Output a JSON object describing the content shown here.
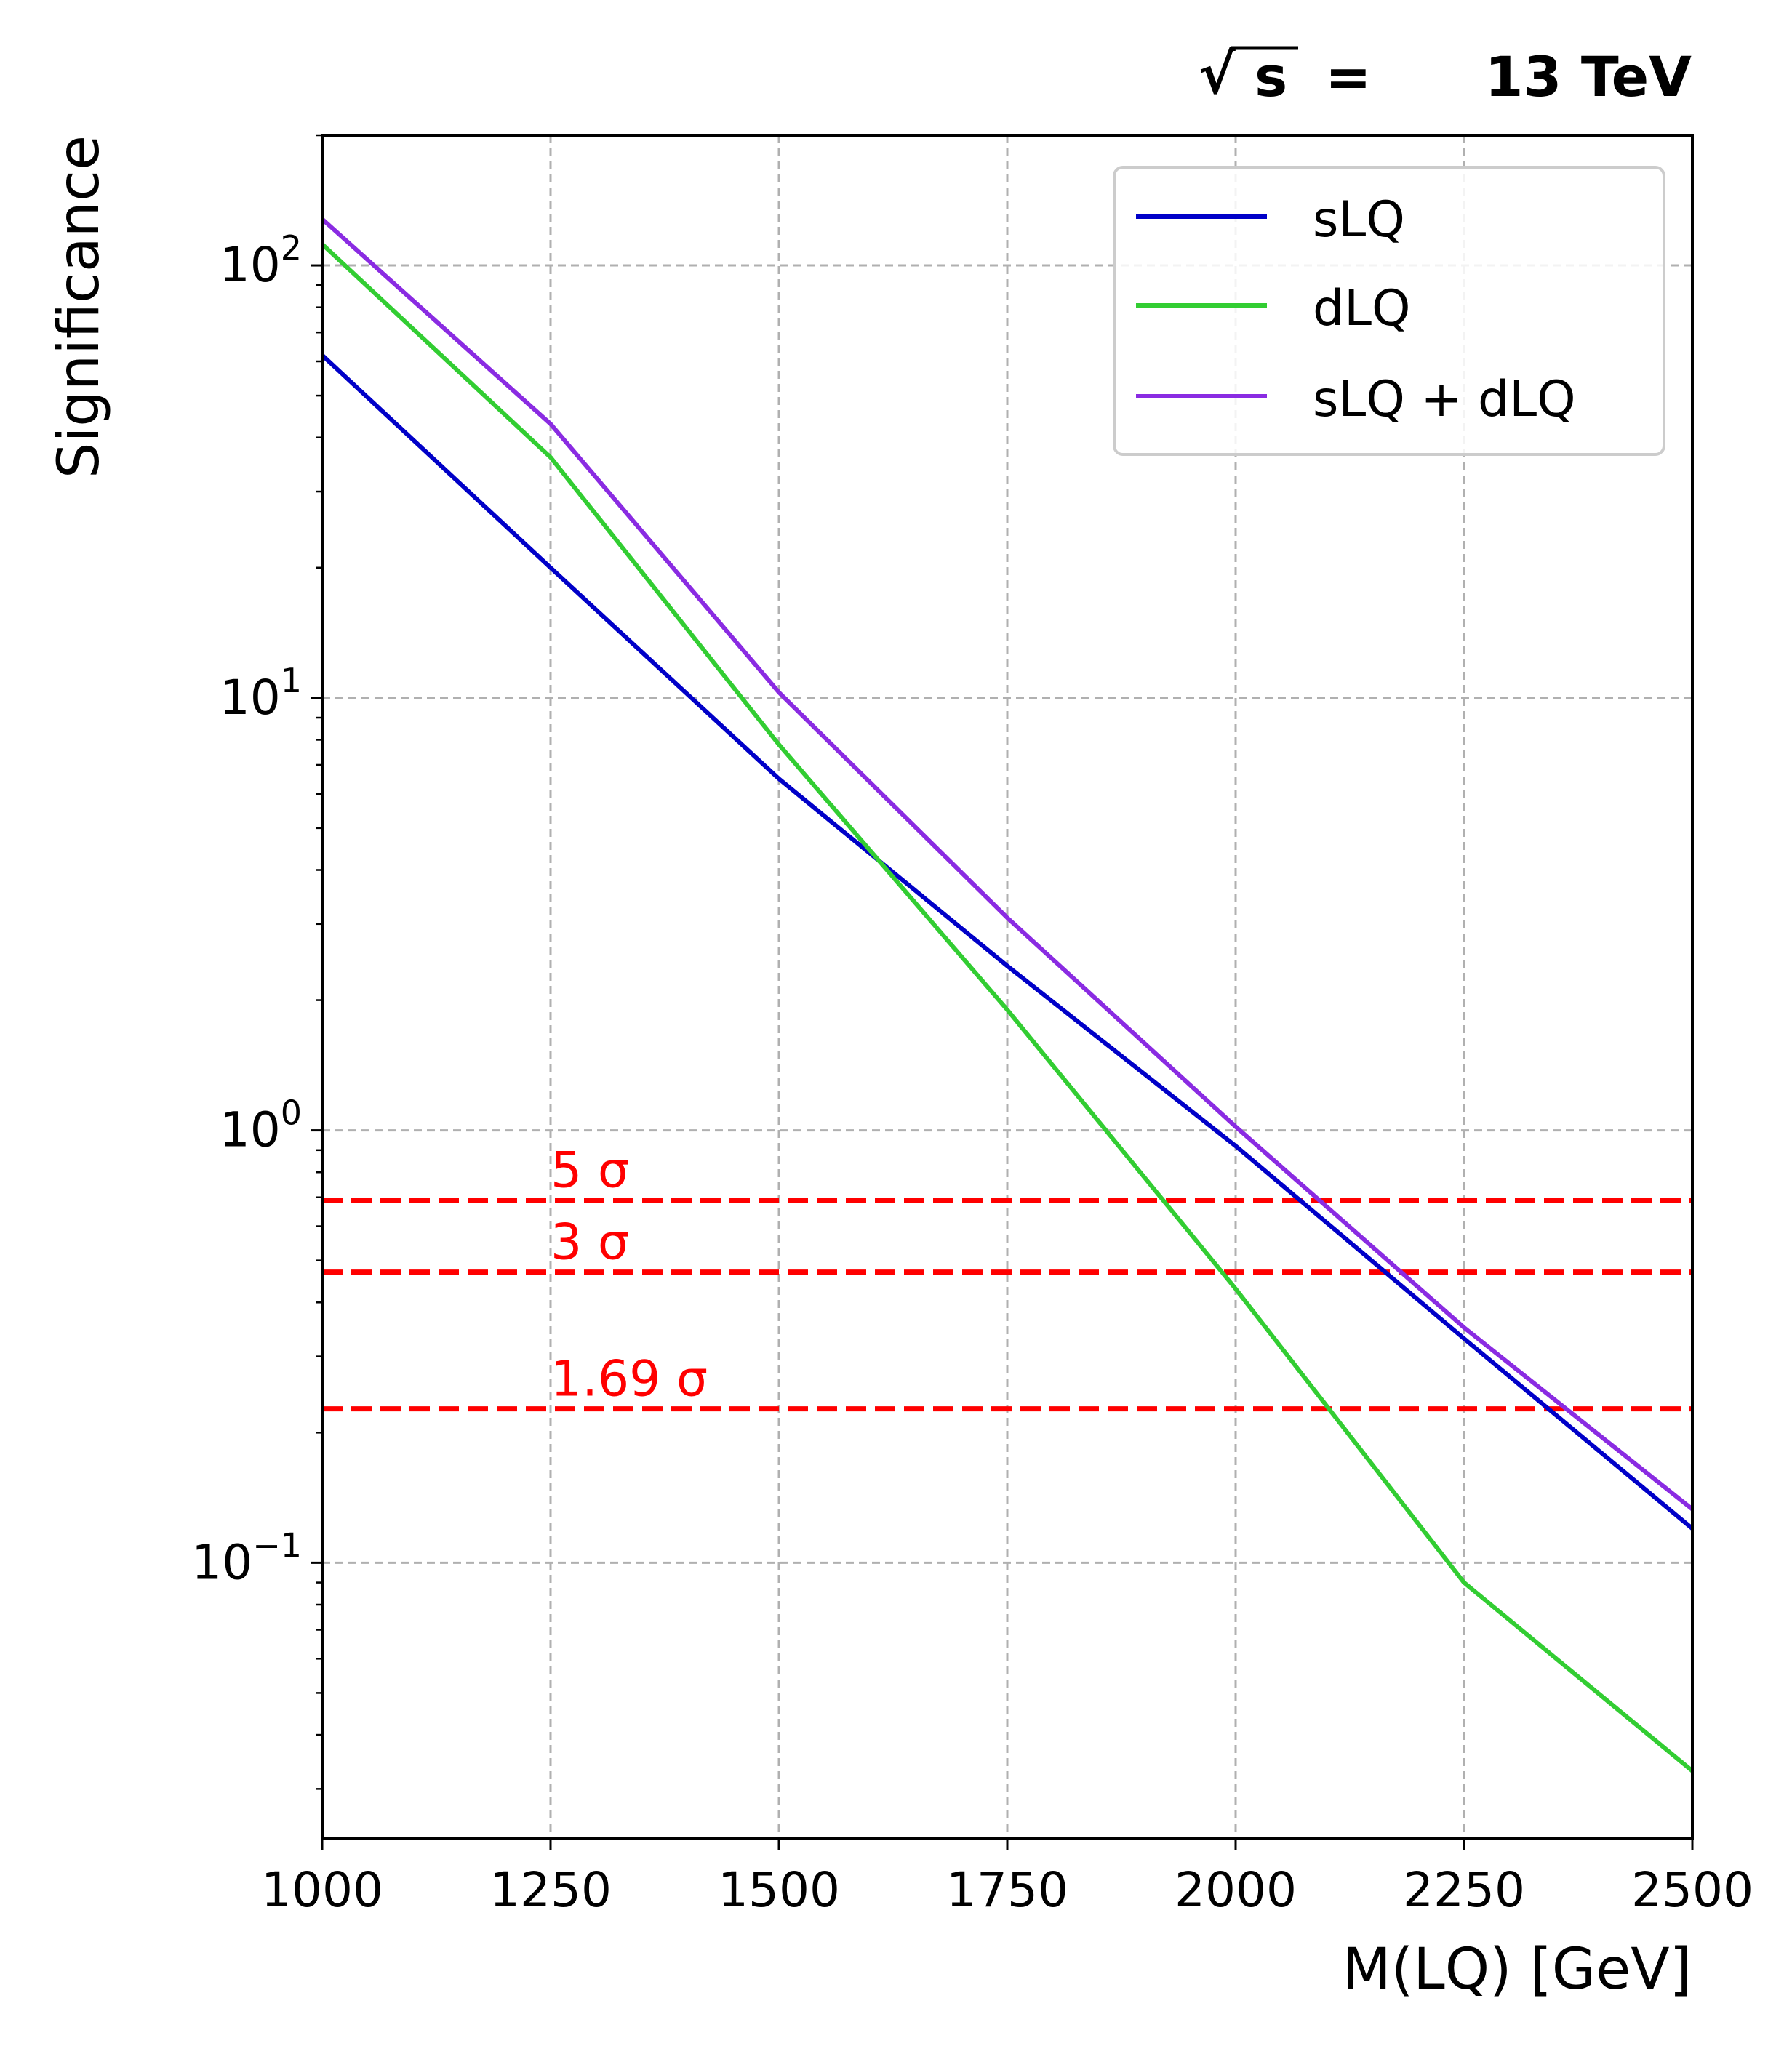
{
  "chart_data": {
    "type": "line",
    "energy_label": "13 TeV",
    "xlabel": "M(LQ) [GeV]",
    "ylabel": "Significance",
    "xlim": [
      1000,
      2500
    ],
    "ylim": [
      0.023,
      200
    ],
    "yscale": "log",
    "grid": true,
    "legend_position": "top-right",
    "x_ticks": [
      1000,
      1250,
      1500,
      1750,
      2000,
      2250,
      2500
    ],
    "y_ticks": [
      {
        "value": 0.1,
        "base": "10",
        "exp": "−1"
      },
      {
        "value": 1,
        "base": "10",
        "exp": "0"
      },
      {
        "value": 10,
        "base": "10",
        "exp": "1"
      },
      {
        "value": 100,
        "base": "10",
        "exp": "2"
      }
    ],
    "series": [
      {
        "name": "sLQ",
        "color": "#0000c8",
        "x": [
          1000,
          1250,
          1500,
          1750,
          2000,
          2250,
          2500
        ],
        "y": [
          62,
          20,
          6.5,
          2.4,
          0.92,
          0.33,
          0.12
        ]
      },
      {
        "name": "dLQ",
        "color": "#32cd32",
        "x": [
          1000,
          1250,
          1500,
          1750,
          2000,
          2250,
          2500
        ],
        "y": [
          112,
          36,
          7.8,
          1.9,
          0.43,
          0.09,
          0.033
        ]
      },
      {
        "name": "sLQ + dLQ",
        "color": "#8a2be2",
        "x": [
          1000,
          1250,
          1500,
          1750,
          2000,
          2250,
          2500
        ],
        "y": [
          128,
          43,
          10.3,
          3.1,
          1.02,
          0.35,
          0.133
        ]
      }
    ],
    "thresholds": [
      {
        "label": "5 σ",
        "value": 0.69,
        "color": "#ff0000"
      },
      {
        "label": "3 σ",
        "value": 0.47,
        "color": "#ff0000"
      },
      {
        "label": "1.69 σ",
        "value": 0.227,
        "color": "#ff0000"
      }
    ]
  }
}
